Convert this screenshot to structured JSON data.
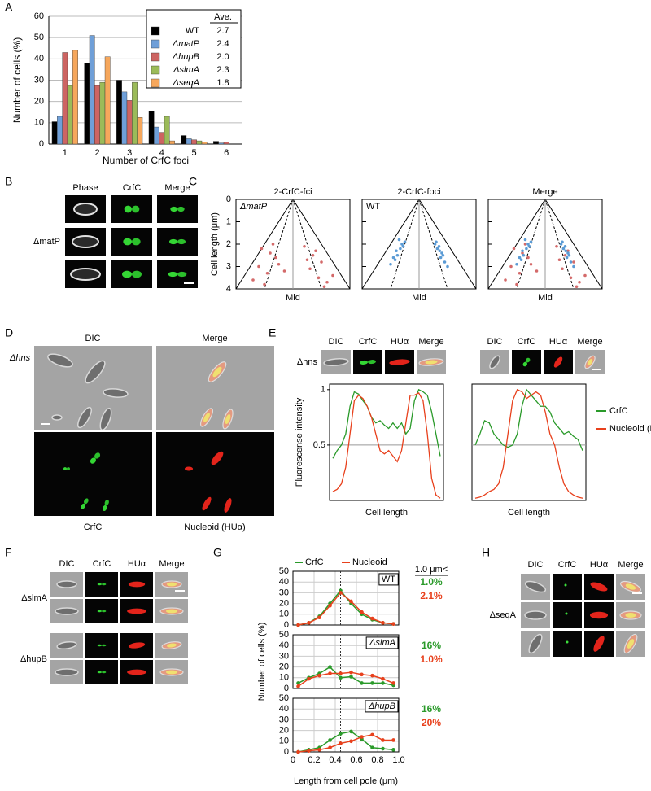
{
  "panel_labels": [
    "A",
    "B",
    "C",
    "D",
    "E",
    "F",
    "G",
    "H"
  ],
  "panel_b": {
    "columns": [
      "Phase",
      "CrfC",
      "Merge"
    ],
    "strain": "ΔmatP"
  },
  "panel_d": {
    "columns": [
      "DIC",
      "Merge"
    ],
    "bottom_labels": [
      "CrfC",
      "Nucleoid (HUα)"
    ],
    "strain": "Δhns"
  },
  "panel_e": {
    "columns": [
      "DIC",
      "CrfC",
      "HUα",
      "Merge"
    ],
    "strain": "Δhns"
  },
  "panel_f": {
    "columns": [
      "DIC",
      "CrfC",
      "HUα",
      "Merge"
    ],
    "strains": [
      "ΔslmA",
      "ΔhupB"
    ]
  },
  "panel_h": {
    "columns": [
      "DIC",
      "CrfC",
      "HUα",
      "Merge"
    ],
    "strain": "ΔseqA"
  },
  "chart_data": [
    {
      "type": "bar",
      "xlabel": "Number of CrfC foci",
      "ylabel": "Number of cells (%)",
      "categories": [
        "1",
        "2",
        "3",
        "4",
        "5",
        "6"
      ],
      "ylim": [
        0,
        60
      ],
      "yticks": [
        0,
        10,
        20,
        30,
        40,
        50,
        60
      ],
      "grid": true,
      "legend_header": "Ave.",
      "series": [
        {
          "name": "WT",
          "color": "#000000",
          "values": [
            10.5,
            38,
            30,
            15.5,
            4,
            1.3
          ],
          "average": 2.7
        },
        {
          "name": "ΔmatP",
          "color": "#6f9fd8",
          "values": [
            13,
            51,
            24.5,
            8,
            2.5,
            0.5
          ],
          "average": 2.4
        },
        {
          "name": "ΔhupB",
          "color": "#cd6462",
          "values": [
            43,
            27.5,
            20.5,
            5.5,
            2,
            1
          ],
          "average": {
            "value": 2,
            "label": "2.0"
          }
        },
        {
          "name": "ΔslmA",
          "color": "#9bbb59",
          "values": [
            27.5,
            29,
            29,
            13,
            1.5,
            0
          ],
          "average": 2.3
        },
        {
          "name": "ΔseqA",
          "color": "#f6a75c",
          "values": [
            44,
            41,
            12.5,
            1.5,
            1,
            0
          ],
          "average": 1.8
        }
      ]
    },
    {
      "type": "scatter",
      "titles": [
        "2-CrfC-fci",
        "2-CrfC-foci",
        "Merge"
      ],
      "xlabel": "Mid",
      "ylabel": "Cell length (μm)",
      "xlim": [
        -1,
        1
      ],
      "ylim": [
        0,
        4
      ],
      "yticks": [
        0,
        1,
        2,
        3,
        4
      ],
      "series": [
        {
          "name": "ΔmatP",
          "color": "#d46a6a",
          "x": [
            -0.55,
            -0.4,
            -0.3,
            -0.6,
            -0.45,
            -0.25,
            -0.7,
            -0.5,
            -0.35,
            -0.15,
            0.2,
            0.35,
            0.5,
            0.3,
            0.45,
            0.6,
            0.25,
            0.55,
            0.7,
            0.4
          ],
          "y": [
            2.2,
            2.4,
            2.6,
            3.0,
            3.3,
            2.9,
            3.6,
            3.8,
            2.0,
            3.2,
            2.1,
            2.5,
            2.8,
            3.1,
            3.5,
            3.7,
            2.7,
            3.9,
            3.4,
            2.3
          ]
        },
        {
          "name": "WT",
          "color": "#5b9bd5",
          "x": [
            -0.35,
            -0.3,
            -0.4,
            -0.28,
            -0.45,
            -0.38,
            -0.25,
            -0.5,
            -0.33,
            -0.42,
            0.3,
            0.35,
            0.4,
            0.28,
            0.45,
            0.38,
            0.32,
            0.5,
            0.36,
            0.42
          ],
          "y": [
            1.8,
            2.0,
            2.3,
            2.1,
            2.6,
            2.5,
            1.9,
            2.9,
            2.2,
            2.7,
            1.9,
            2.1,
            2.4,
            2.0,
            2.8,
            2.6,
            2.2,
            3.0,
            2.3,
            2.5
          ]
        }
      ]
    },
    {
      "type": "line",
      "ylabel": "Fluorescense intensity",
      "xlabel": "Cell length",
      "ylim": [
        0,
        1.05
      ],
      "yticks": [
        0.5,
        1
      ],
      "reference_line": 0.5,
      "series": [
        {
          "color": "#2a9a2a",
          "values": [
            0.38,
            0.45,
            0.5,
            0.6,
            0.85,
            0.98,
            0.96,
            0.9,
            0.85,
            0.75,
            0.7,
            0.72,
            0.68,
            0.65,
            0.7,
            0.65,
            0.7,
            0.6,
            0.65,
            0.9,
            1.0,
            0.98,
            0.95,
            0.8,
            0.6,
            0.4
          ]
        },
        {
          "color": "#e8401c",
          "values": [
            0.08,
            0.1,
            0.15,
            0.3,
            0.6,
            0.9,
            0.95,
            0.92,
            0.85,
            0.75,
            0.6,
            0.45,
            0.42,
            0.45,
            0.4,
            0.35,
            0.45,
            0.7,
            0.95,
            0.95,
            0.97,
            0.9,
            0.6,
            0.2,
            0.05,
            0.02
          ]
        }
      ]
    },
    {
      "type": "line",
      "xlabel": "Cell length",
      "ylim": [
        0,
        1.05
      ],
      "reference_line": 0.5,
      "series": [
        {
          "name": "CrfC",
          "color": "#2a9a2a",
          "values": [
            0.5,
            0.6,
            0.72,
            0.7,
            0.6,
            0.55,
            0.5,
            0.48,
            0.5,
            0.6,
            0.85,
            1.0,
            0.95,
            0.9,
            0.85,
            0.85,
            0.8,
            0.7,
            0.65,
            0.6,
            0.62,
            0.58,
            0.55,
            0.45
          ]
        },
        {
          "name": "Nucleoid (HUα)",
          "color": "#e8401c",
          "values": [
            0.02,
            0.03,
            0.05,
            0.08,
            0.1,
            0.15,
            0.3,
            0.6,
            0.9,
            1.0,
            0.98,
            0.92,
            0.95,
            0.98,
            0.95,
            0.8,
            0.6,
            0.5,
            0.3,
            0.15,
            0.08,
            0.05,
            0.03,
            0.02
          ]
        }
      ]
    },
    {
      "type": "line",
      "label": "WT",
      "annotation_header": "1.0 μm<",
      "xlim": [
        0,
        1
      ],
      "ylim": [
        0,
        50
      ],
      "yticks": [
        0,
        10,
        20,
        30,
        40,
        50
      ],
      "vline": 0.45,
      "x": [
        0.05,
        0.15,
        0.25,
        0.35,
        0.45,
        0.55,
        0.65,
        0.75,
        0.85,
        0.95
      ],
      "annotations": [
        {
          "text": "1.0%",
          "color": "#2a9a2a"
        },
        {
          "text": "2.1%",
          "color": "#e8401c"
        }
      ],
      "series": [
        {
          "name": "CrfC",
          "color": "#2a9a2a",
          "values": [
            0,
            2,
            8,
            20,
            32,
            20,
            10,
            5,
            2,
            1
          ]
        },
        {
          "name": "Nucleoid",
          "color": "#e8401c",
          "values": [
            0,
            2,
            7,
            18,
            30,
            22,
            12,
            6,
            2,
            1
          ]
        }
      ]
    },
    {
      "type": "line",
      "label": "ΔslmA",
      "ylabel": "Number of cells (%)",
      "xlim": [
        0,
        1
      ],
      "ylim": [
        0,
        50
      ],
      "yticks": [
        0,
        10,
        20,
        30,
        40,
        50
      ],
      "vline": 0.45,
      "x": [
        0.05,
        0.15,
        0.25,
        0.35,
        0.45,
        0.55,
        0.65,
        0.75,
        0.85,
        0.95
      ],
      "annotations": [
        {
          "text": "16%",
          "color": "#2a9a2a"
        },
        {
          "text": "1.0%",
          "color": "#e8401c"
        }
      ],
      "series": [
        {
          "color": "#2a9a2a",
          "values": [
            5,
            10,
            14,
            20,
            10,
            11,
            5,
            5,
            5,
            3
          ]
        },
        {
          "color": "#e8401c",
          "values": [
            2,
            9,
            12,
            14,
            14,
            15,
            13,
            12,
            9,
            5
          ]
        }
      ]
    },
    {
      "type": "line",
      "label": "ΔhupB",
      "xlabel": "Length from cell pole (μm)",
      "xlim": [
        0,
        1
      ],
      "ylim": [
        0,
        50
      ],
      "yticks": [
        0,
        10,
        20,
        30,
        40,
        50
      ],
      "xticks": [
        0,
        0.2,
        0.4,
        0.6,
        0.8,
        {
          "value": 1,
          "label": "1.0"
        }
      ],
      "vline": 0.45,
      "x": [
        0.05,
        0.15,
        0.25,
        0.35,
        0.45,
        0.55,
        0.65,
        0.75,
        0.85,
        0.95
      ],
      "annotations": [
        {
          "text": "16%",
          "color": "#2a9a2a"
        },
        {
          "text": "20%",
          "color": "#e8401c"
        }
      ],
      "series": [
        {
          "color": "#2a9a2a",
          "values": [
            0,
            2,
            4,
            11,
            17,
            19,
            12,
            4,
            3,
            2
          ]
        },
        {
          "color": "#e8401c",
          "values": [
            0,
            1,
            2,
            4,
            8,
            10,
            14,
            16,
            11,
            11
          ]
        }
      ]
    }
  ]
}
